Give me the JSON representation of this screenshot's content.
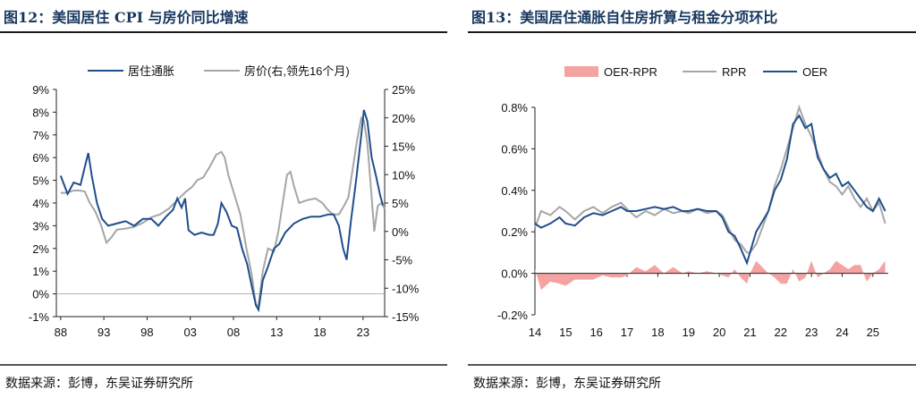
{
  "charts": [
    {
      "title": "图12：美国居住 CPI 与房价同比增速",
      "source": "数据来源：彭博，东吴证券研究所"
    },
    {
      "title": "图13：美国居住通胀自住房折算与租金分项环比",
      "source": "数据来源：彭博，东吴证券研究所"
    }
  ],
  "chart_data": [
    {
      "type": "line",
      "title": "图12：美国居住 CPI 与房价同比增速",
      "x_tick_labels": [
        "88",
        "93",
        "98",
        "03",
        "08",
        "13",
        "18",
        "23"
      ],
      "x_tick_years": [
        1988,
        1993,
        1998,
        2003,
        2008,
        2013,
        2018,
        2023
      ],
      "xlim": [
        1987.5,
        2025.5
      ],
      "y_left": {
        "ylim": [
          -1,
          9
        ],
        "ticks": [
          "-1%",
          "0%",
          "1%",
          "2%",
          "3%",
          "4%",
          "5%",
          "6%",
          "7%",
          "8%",
          "9%"
        ]
      },
      "y_right": {
        "ylim": [
          -15,
          25
        ],
        "ticks": [
          "-15%",
          "-10%",
          "-5%",
          "0%",
          "5%",
          "10%",
          "15%",
          "20%",
          "25%"
        ]
      },
      "legend": "top",
      "colors": {
        "shelter": "#1f4e8c",
        "hpi": "#a6a6a6"
      },
      "series": [
        {
          "name": "居住通胀",
          "axis": "left",
          "points": [
            [
              1988,
              5.2
            ],
            [
              1988.8,
              4.4
            ],
            [
              1989.5,
              4.9
            ],
            [
              1990.3,
              4.8
            ],
            [
              1990.8,
              5.6
            ],
            [
              1991.2,
              6.2
            ],
            [
              1991.6,
              5.2
            ],
            [
              1992.2,
              4.0
            ],
            [
              1992.8,
              3.3
            ],
            [
              1993.5,
              3.0
            ],
            [
              1994.5,
              3.1
            ],
            [
              1995.5,
              3.2
            ],
            [
              1996.5,
              3.0
            ],
            [
              1997.5,
              3.3
            ],
            [
              1998.5,
              3.3
            ],
            [
              1999.3,
              3.0
            ],
            [
              2000.2,
              3.4
            ],
            [
              2001,
              3.7
            ],
            [
              2001.5,
              4.2
            ],
            [
              2002,
              3.8
            ],
            [
              2002.4,
              4.2
            ],
            [
              2002.8,
              2.8
            ],
            [
              2003.5,
              2.6
            ],
            [
              2004.3,
              2.7
            ],
            [
              2005.2,
              2.6
            ],
            [
              2005.7,
              2.6
            ],
            [
              2006.2,
              3.1
            ],
            [
              2006.6,
              4.0
            ],
            [
              2007.2,
              3.6
            ],
            [
              2007.8,
              3.0
            ],
            [
              2008.4,
              2.9
            ],
            [
              2009,
              2.0
            ],
            [
              2009.6,
              1.3
            ],
            [
              2010.2,
              0.2
            ],
            [
              2010.6,
              -0.5
            ],
            [
              2010.9,
              -0.7
            ],
            [
              2011.4,
              0.6
            ],
            [
              2012,
              1.2
            ],
            [
              2012.7,
              2.0
            ],
            [
              2013.3,
              2.2
            ],
            [
              2014,
              2.7
            ],
            [
              2015,
              3.1
            ],
            [
              2016,
              3.3
            ],
            [
              2017,
              3.4
            ],
            [
              2018,
              3.4
            ],
            [
              2019,
              3.5
            ],
            [
              2019.6,
              3.5
            ],
            [
              2020.2,
              3.0
            ],
            [
              2020.7,
              2.0
            ],
            [
              2021.1,
              1.5
            ],
            [
              2021.6,
              3.2
            ],
            [
              2022.2,
              5.0
            ],
            [
              2022.8,
              7.0
            ],
            [
              2023.1,
              8.1
            ],
            [
              2023.5,
              7.6
            ],
            [
              2024,
              6.0
            ],
            [
              2024.5,
              5.2
            ],
            [
              2025,
              4.3
            ],
            [
              2025.3,
              3.9
            ]
          ]
        },
        {
          "name": "房价(右,领先16个月)",
          "axis": "right",
          "points": [
            [
              1988,
              6.8
            ],
            [
              1988.7,
              6.8
            ],
            [
              1989.5,
              7.2
            ],
            [
              1990.2,
              7.2
            ],
            [
              1990.8,
              7.0
            ],
            [
              1991.3,
              5.2
            ],
            [
              1992,
              3.5
            ],
            [
              1992.7,
              1.0
            ],
            [
              1993.3,
              -2.0
            ],
            [
              1993.9,
              -1.0
            ],
            [
              1994.5,
              0.3
            ],
            [
              1995.5,
              0.5
            ],
            [
              1996.5,
              0.8
            ],
            [
              1997.5,
              1.5
            ],
            [
              1998.5,
              2.5
            ],
            [
              1999.5,
              3.0
            ],
            [
              2000.5,
              4.0
            ],
            [
              2001.5,
              5.5
            ],
            [
              2002.5,
              7.0
            ],
            [
              2003.2,
              7.8
            ],
            [
              2003.8,
              9.0
            ],
            [
              2004.5,
              9.5
            ],
            [
              2005.3,
              11.5
            ],
            [
              2006,
              13.5
            ],
            [
              2006.6,
              14.0
            ],
            [
              2007,
              13.0
            ],
            [
              2007.4,
              10.0
            ],
            [
              2008,
              7.0
            ],
            [
              2008.8,
              3.0
            ],
            [
              2009.5,
              -3.0
            ],
            [
              2010.1,
              -7.5
            ],
            [
              2010.6,
              -13.0
            ],
            [
              2010.9,
              -13.0
            ],
            [
              2011.4,
              -7.0
            ],
            [
              2012,
              -3.0
            ],
            [
              2012.7,
              -3.5
            ],
            [
              2013.2,
              0.0
            ],
            [
              2013.7,
              5.0
            ],
            [
              2014.2,
              10.0
            ],
            [
              2014.6,
              10.5
            ],
            [
              2015,
              8.0
            ],
            [
              2015.6,
              5.0
            ],
            [
              2016.5,
              5.5
            ],
            [
              2017.5,
              5.8
            ],
            [
              2018.3,
              5.0
            ],
            [
              2018.8,
              4.0
            ],
            [
              2019.5,
              3.0
            ],
            [
              2020.2,
              3.0
            ],
            [
              2020.8,
              4.5
            ],
            [
              2021.3,
              6.0
            ],
            [
              2021.8,
              11.0
            ],
            [
              2022.3,
              16.0
            ],
            [
              2022.8,
              20.0
            ],
            [
              2023.1,
              19.5
            ],
            [
              2023.5,
              15.5
            ],
            [
              2023.9,
              8.0
            ],
            [
              2024.3,
              0.0
            ],
            [
              2024.7,
              4.5
            ],
            [
              2025.1,
              5.0
            ],
            [
              2025.5,
              4.0
            ]
          ]
        }
      ]
    },
    {
      "type": "area+line",
      "title": "图13：美国居住通胀自住房折算与租金分项环比",
      "x_tick_labels": [
        "14",
        "15",
        "16",
        "17",
        "18",
        "19",
        "20",
        "21",
        "22",
        "23",
        "24",
        "25"
      ],
      "x_tick_years": [
        2014,
        2015,
        2016,
        2017,
        2018,
        2019,
        2020,
        2021,
        2022,
        2023,
        2024,
        2025
      ],
      "xlim": [
        2014,
        2025.5
      ],
      "ylim": [
        -0.2,
        0.8
      ],
      "y_ticks": [
        "-0.2%",
        "0.0%",
        "0.2%",
        "0.4%",
        "0.6%",
        "0.8%"
      ],
      "legend": "top",
      "colors": {
        "diff": "#f4a3a3",
        "rpr": "#a6a6a6",
        "oer": "#1f4e8c"
      },
      "series": [
        {
          "name": "OER-RPR",
          "style": "area"
        },
        {
          "name": "RPR",
          "style": "line",
          "points": [
            [
              2014,
              0.22
            ],
            [
              2014.2,
              0.3
            ],
            [
              2014.5,
              0.28
            ],
            [
              2014.8,
              0.32
            ],
            [
              2015,
              0.3
            ],
            [
              2015.3,
              0.26
            ],
            [
              2015.6,
              0.3
            ],
            [
              2015.9,
              0.32
            ],
            [
              2016.2,
              0.29
            ],
            [
              2016.5,
              0.32
            ],
            [
              2016.8,
              0.34
            ],
            [
              2017,
              0.31
            ],
            [
              2017.3,
              0.27
            ],
            [
              2017.6,
              0.3
            ],
            [
              2017.9,
              0.28
            ],
            [
              2018.2,
              0.31
            ],
            [
              2018.5,
              0.29
            ],
            [
              2018.8,
              0.3
            ],
            [
              2019,
              0.29
            ],
            [
              2019.3,
              0.31
            ],
            [
              2019.6,
              0.29
            ],
            [
              2019.9,
              0.3
            ],
            [
              2020.1,
              0.28
            ],
            [
              2020.3,
              0.22
            ],
            [
              2020.5,
              0.16
            ],
            [
              2020.7,
              0.14
            ],
            [
              2020.9,
              0.1
            ],
            [
              2021,
              0.1
            ],
            [
              2021.2,
              0.14
            ],
            [
              2021.4,
              0.22
            ],
            [
              2021.6,
              0.3
            ],
            [
              2021.8,
              0.42
            ],
            [
              2022,
              0.5
            ],
            [
              2022.2,
              0.6
            ],
            [
              2022.4,
              0.7
            ],
            [
              2022.6,
              0.8
            ],
            [
              2022.8,
              0.72
            ],
            [
              2023,
              0.66
            ],
            [
              2023.2,
              0.58
            ],
            [
              2023.4,
              0.5
            ],
            [
              2023.6,
              0.44
            ],
            [
              2023.8,
              0.42
            ],
            [
              2024,
              0.38
            ],
            [
              2024.2,
              0.42
            ],
            [
              2024.4,
              0.36
            ],
            [
              2024.6,
              0.32
            ],
            [
              2024.8,
              0.36
            ],
            [
              2025,
              0.3
            ],
            [
              2025.2,
              0.34
            ],
            [
              2025.4,
              0.24
            ]
          ]
        },
        {
          "name": "OER",
          "style": "line",
          "points": [
            [
              2014,
              0.24
            ],
            [
              2014.2,
              0.22
            ],
            [
              2014.5,
              0.24
            ],
            [
              2014.8,
              0.27
            ],
            [
              2015,
              0.24
            ],
            [
              2015.3,
              0.23
            ],
            [
              2015.6,
              0.27
            ],
            [
              2015.9,
              0.29
            ],
            [
              2016.2,
              0.28
            ],
            [
              2016.5,
              0.3
            ],
            [
              2016.8,
              0.32
            ],
            [
              2017,
              0.3
            ],
            [
              2017.3,
              0.3
            ],
            [
              2017.6,
              0.31
            ],
            [
              2017.9,
              0.32
            ],
            [
              2018.2,
              0.31
            ],
            [
              2018.5,
              0.32
            ],
            [
              2018.8,
              0.3
            ],
            [
              2019,
              0.3
            ],
            [
              2019.3,
              0.31
            ],
            [
              2019.6,
              0.3
            ],
            [
              2019.9,
              0.3
            ],
            [
              2020.1,
              0.27
            ],
            [
              2020.3,
              0.2
            ],
            [
              2020.5,
              0.18
            ],
            [
              2020.7,
              0.12
            ],
            [
              2020.9,
              0.05
            ],
            [
              2021,
              0.1
            ],
            [
              2021.2,
              0.2
            ],
            [
              2021.4,
              0.25
            ],
            [
              2021.6,
              0.3
            ],
            [
              2021.8,
              0.4
            ],
            [
              2022,
              0.45
            ],
            [
              2022.2,
              0.55
            ],
            [
              2022.4,
              0.72
            ],
            [
              2022.6,
              0.76
            ],
            [
              2022.8,
              0.7
            ],
            [
              2023,
              0.72
            ],
            [
              2023.2,
              0.56
            ],
            [
              2023.4,
              0.5
            ],
            [
              2023.6,
              0.46
            ],
            [
              2023.8,
              0.48
            ],
            [
              2024,
              0.42
            ],
            [
              2024.2,
              0.44
            ],
            [
              2024.4,
              0.4
            ],
            [
              2024.6,
              0.36
            ],
            [
              2024.8,
              0.32
            ],
            [
              2025,
              0.3
            ],
            [
              2025.2,
              0.36
            ],
            [
              2025.4,
              0.3
            ]
          ]
        }
      ]
    }
  ]
}
